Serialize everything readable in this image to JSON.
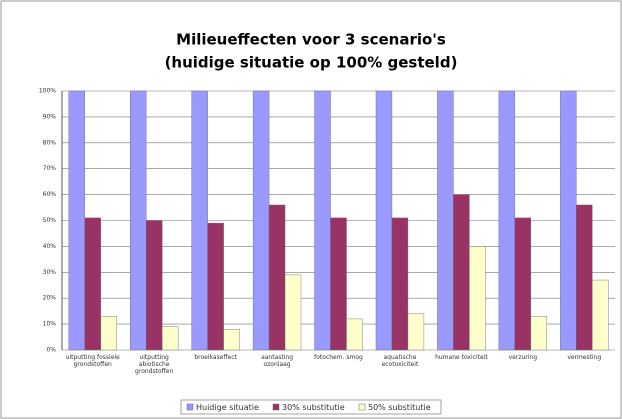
{
  "chart_data": {
    "type": "bar",
    "title": "Milieueffecten voor 3 scenario's",
    "subtitle": "(huidige situatie op 100% gesteld)",
    "categories": [
      "uitputting fossiele grondstoffen",
      "uitputting abiotische grondstoffen",
      "broeikaseffect",
      "aantasting ozonlaag",
      "fotochem. smog",
      "aquatische ecotoxiciteit",
      "humane toxiciteit",
      "verzuring",
      "vermesting"
    ],
    "series": [
      {
        "name": "Huidige situatie",
        "color": "#9999ff",
        "values": [
          100,
          100,
          100,
          100,
          100,
          100,
          100,
          100,
          100
        ]
      },
      {
        "name": "30% substitutie",
        "color": "#993366",
        "values": [
          51,
          50,
          49,
          56,
          51,
          51,
          60,
          51,
          56
        ]
      },
      {
        "name": "50% substitutie",
        "color": "#ffffcc",
        "values": [
          13,
          9,
          8,
          29,
          12,
          14,
          40,
          13,
          27
        ]
      }
    ],
    "ylim": [
      0,
      100
    ],
    "yticks": [
      {
        "value": 0,
        "label": "0%"
      },
      {
        "value": 10,
        "label": "10%"
      },
      {
        "value": 20,
        "label": "20%"
      },
      {
        "value": 30,
        "label": "30%"
      },
      {
        "value": 40,
        "label": "40%"
      },
      {
        "value": 50,
        "label": "50%"
      },
      {
        "value": 60,
        "label": "60%"
      },
      {
        "value": 70,
        "label": "70%"
      },
      {
        "value": 80,
        "label": "80%"
      },
      {
        "value": 90,
        "label": "90%"
      },
      {
        "value": 100,
        "label": "100%"
      }
    ],
    "grid": true,
    "legend": "bottom"
  }
}
